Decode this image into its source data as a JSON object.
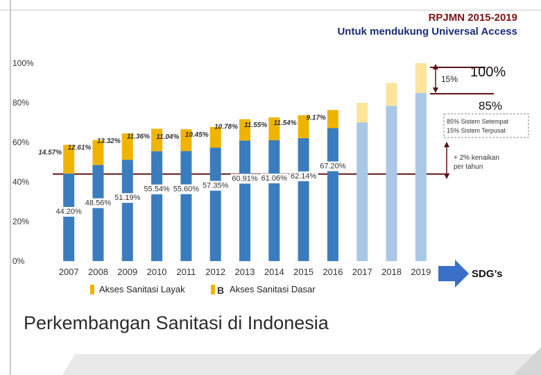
{
  "header": {
    "line1": "RPJMN 2015-2019",
    "line2": "Untuk mendukung Universal Access"
  },
  "slide_title": "Perkembangan Sanitasi di Indonesia",
  "sdg_label": "SDG’s",
  "colors": {
    "layak": "#3a7dbf",
    "dasar": "#f0b400",
    "layak_light": "#a9c8e6",
    "dasar_light": "#fde49a",
    "ref_line": "#5c1414",
    "arrow": "#3a6fc8"
  },
  "annotations": {
    "target_100": "100%",
    "target_85": "85%",
    "gap_15": "15%",
    "note_1": "85% Sistem Setempat",
    "note_2": "15% Sistem Terpusat",
    "growth_1": "+ 2% kenaikan",
    "growth_2": "per tahun"
  },
  "chart_data": {
    "type": "bar",
    "stacked": true,
    "categories": [
      "2007",
      "2008",
      "2009",
      "2010",
      "2011",
      "2012",
      "2013",
      "2014",
      "2015",
      "2016",
      "2017",
      "2018",
      "2019"
    ],
    "series": [
      {
        "name": "Akses Sanitasi Layak",
        "values": [
          44.2,
          48.56,
          51.19,
          55.54,
          55.6,
          57.35,
          60.91,
          61.06,
          62.14,
          67.2,
          70.0,
          78.5,
          85.0
        ],
        "labels": [
          "44.20%",
          "48.56%",
          "51.19%",
          "55.54%",
          "55.60%",
          "57.35%",
          "60.91%",
          "61.06%",
          "62.14%",
          "67.20%",
          "",
          "",
          ""
        ]
      },
      {
        "name": "Akses Sanitasi Dasar",
        "values": [
          14.57,
          12.61,
          13.32,
          11.36,
          11.04,
          10.45,
          10.78,
          11.55,
          11.54,
          9.17,
          10.0,
          11.5,
          15.0
        ],
        "labels": [
          "14.57%",
          "12.61%",
          "13.32%",
          "11.36%",
          "11.04%",
          "10.45%",
          "10.78%",
          "11.55%",
          "11.54%",
          "9.17%",
          "",
          "",
          ""
        ]
      }
    ],
    "projected_from": "2017",
    "y_ticks": [
      "0%",
      "20%",
      "40%",
      "60%",
      "80%",
      "100%"
    ],
    "ylim": [
      0,
      100
    ],
    "reference_line": 44,
    "legend_entries": [
      "Akses Sanitasi Layak",
      "Akses Sanitasi Dasar"
    ],
    "legend_marker_text": "B",
    "legend_position": "bottom",
    "grid": false
  }
}
